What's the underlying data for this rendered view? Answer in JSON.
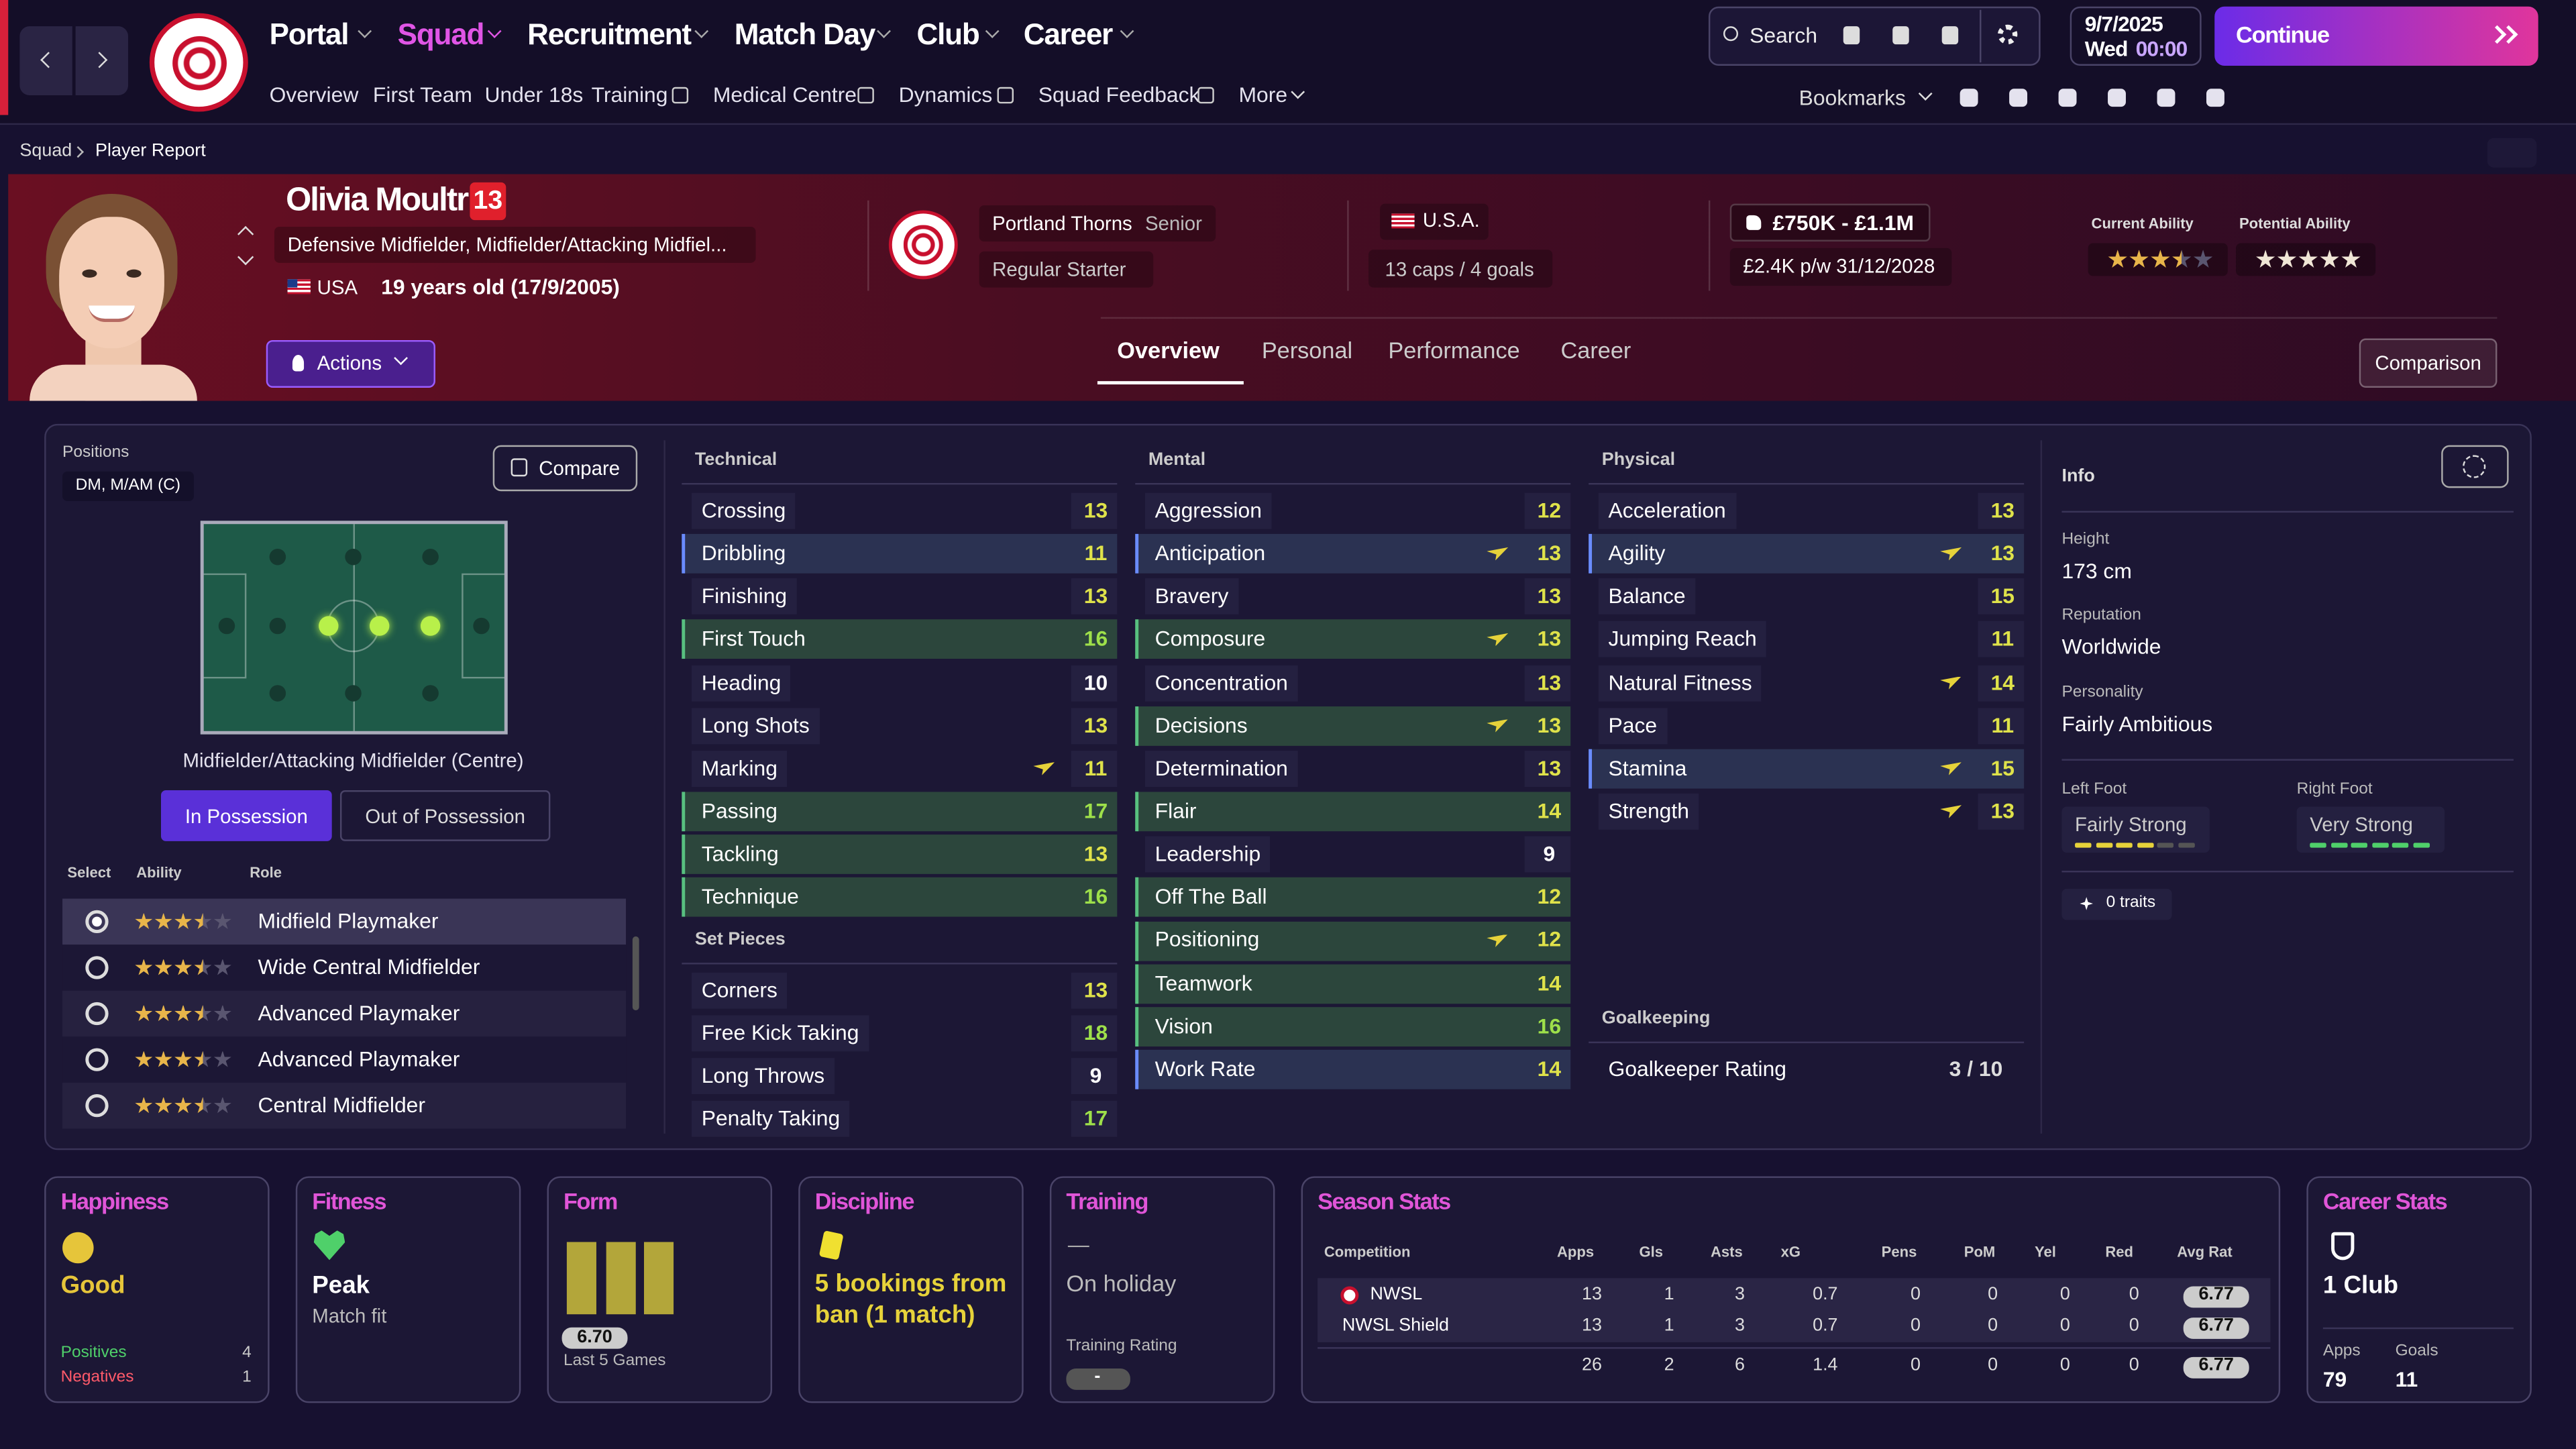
{
  "nav": {
    "menus": [
      "Portal",
      "Squad",
      "Recruitment",
      "Match Day",
      "Club",
      "Career"
    ],
    "submenu": [
      "Overview",
      "First Team",
      "Under 18s",
      "Training",
      "Medical Centre",
      "Dynamics",
      "Squad Feedback",
      "More"
    ],
    "search": "Search",
    "bookmarks": "Bookmarks",
    "date": "9/7/2025",
    "day": "Wed",
    "time": "00:00",
    "continue": "Continue"
  },
  "breadcrumb": [
    "Squad",
    "Player Report"
  ],
  "player": {
    "name": "Olivia Moultrie",
    "number": "13",
    "positions": "Defensive Midfielder, Midfielder/Attacking Midfiel...",
    "nationality": "USA",
    "age": "19 years old (17/9/2005)",
    "actions": "Actions",
    "club": "Portland Thorns",
    "squad": "Senior",
    "status": "Regular Starter",
    "country": "U.S.A.",
    "caps": "13 caps / 4 goals",
    "value": "£750K - £1.1M",
    "wage": "£2.4K p/w 31/12/2028",
    "current_ability_label": "Current Ability",
    "current_ability": 3.5,
    "potential_ability_label": "Potential Ability",
    "potential_ability": 5
  },
  "tabs": [
    "Overview",
    "Personal",
    "Performance",
    "Career"
  ],
  "comparison": "Comparison",
  "positions": {
    "label": "Positions",
    "value": "DM, M/AM (C)",
    "compare": "Compare",
    "selected_position": "Midfielder/Attacking Midfielder (Centre)",
    "toggle": [
      "In Possession",
      "Out of Possession"
    ],
    "headers": [
      "Select",
      "Ability",
      "Role"
    ],
    "roles": [
      {
        "name": "Midfield Playmaker",
        "ability": 3.5
      },
      {
        "name": "Wide Central Midfielder",
        "ability": 3.5
      },
      {
        "name": "Advanced Playmaker",
        "ability": 3.5
      },
      {
        "name": "Advanced Playmaker",
        "ability": 3.5
      },
      {
        "name": "Central Midfielder",
        "ability": 3.5
      }
    ]
  },
  "attributes": [
    {
      "title": "Technical",
      "items": [
        {
          "name": "Crossing",
          "value": 13
        },
        {
          "name": "Dribbling",
          "value": 11
        },
        {
          "name": "Finishing",
          "value": 13
        },
        {
          "name": "First Touch",
          "value": 16
        },
        {
          "name": "Heading",
          "value": 10
        },
        {
          "name": "Long Shots",
          "value": 13
        },
        {
          "name": "Marking",
          "value": 11
        },
        {
          "name": "Passing",
          "value": 17
        },
        {
          "name": "Tackling",
          "value": 13
        },
        {
          "name": "Technique",
          "value": 16
        }
      ]
    },
    {
      "title": "Set Pieces",
      "items": [
        {
          "name": "Corners",
          "value": 13
        },
        {
          "name": "Free Kick Taking",
          "value": 18
        },
        {
          "name": "Long Throws",
          "value": 9
        },
        {
          "name": "Penalty Taking",
          "value": 17
        }
      ]
    },
    {
      "title": "Mental",
      "items": [
        {
          "name": "Aggression",
          "value": 12
        },
        {
          "name": "Anticipation",
          "value": 13
        },
        {
          "name": "Bravery",
          "value": 13
        },
        {
          "name": "Composure",
          "value": 13
        },
        {
          "name": "Concentration",
          "value": 13
        },
        {
          "name": "Decisions",
          "value": 13
        },
        {
          "name": "Determination",
          "value": 13
        },
        {
          "name": "Flair",
          "value": 14
        },
        {
          "name": "Leadership",
          "value": 9
        },
        {
          "name": "Off The Ball",
          "value": 12
        },
        {
          "name": "Positioning",
          "value": 12
        },
        {
          "name": "Teamwork",
          "value": 14
        },
        {
          "name": "Vision",
          "value": 16
        },
        {
          "name": "Work Rate",
          "value": 14
        }
      ]
    },
    {
      "title": "Physical",
      "items": [
        {
          "name": "Acceleration",
          "value": 13
        },
        {
          "name": "Agility",
          "value": 13
        },
        {
          "name": "Balance",
          "value": 15
        },
        {
          "name": "Jumping Reach",
          "value": 11
        },
        {
          "name": "Natural Fitness",
          "value": 14
        },
        {
          "name": "Pace",
          "value": 11
        },
        {
          "name": "Stamina",
          "value": 15
        },
        {
          "name": "Strength",
          "value": 13
        }
      ]
    },
    {
      "title": "Goalkeeping",
      "items": [
        {
          "name": "Goalkeeper Rating",
          "value": "3 / 10"
        }
      ]
    }
  ],
  "info": {
    "title": "Info",
    "fields": [
      {
        "label": "Height",
        "value": "173 cm"
      },
      {
        "label": "Reputation",
        "value": "Worldwide"
      },
      {
        "label": "Personality",
        "value": "Fairly Ambitious"
      }
    ],
    "left_foot": {
      "label": "Left Foot",
      "value": "Fairly Strong"
    },
    "right_foot": {
      "label": "Right Foot",
      "value": "Very Strong"
    },
    "traits": "0 traits"
  },
  "cards": {
    "happiness": {
      "title": "Happiness",
      "status": "Good",
      "positives_label": "Positives",
      "positives": 4,
      "negatives_label": "Negatives",
      "negatives": 1
    },
    "fitness": {
      "title": "Fitness",
      "status": "Peak",
      "detail": "Match fit"
    },
    "form": {
      "title": "Form",
      "rating": "6.70",
      "detail": "Last 5 Games"
    },
    "discipline": {
      "title": "Discipline",
      "status": "5 bookings from ban (1 match)"
    },
    "training": {
      "title": "Training",
      "status": "—",
      "detail": "On holiday",
      "rating_label": "Training Rating",
      "rating": "-"
    },
    "season_stats": {
      "title": "Season Stats",
      "headers": [
        "Competition",
        "Apps",
        "Gls",
        "Asts",
        "xG",
        "Pens",
        "PoM",
        "Yel",
        "Red",
        "Avg Rat"
      ],
      "rows": [
        [
          "NWSL",
          13,
          1,
          3,
          0.7,
          0,
          0,
          0,
          0,
          6.77
        ],
        [
          "NWSL Shield",
          13,
          1,
          3,
          0.7,
          0,
          0,
          0,
          0,
          6.77
        ]
      ],
      "totals": [
        26,
        2,
        6,
        1.4,
        0,
        0,
        0,
        0,
        6.77
      ]
    },
    "career_stats": {
      "title": "Career Stats",
      "clubs": "1 Club",
      "apps_label": "Apps",
      "apps": 79,
      "goals_label": "Goals",
      "goals": 11
    }
  }
}
